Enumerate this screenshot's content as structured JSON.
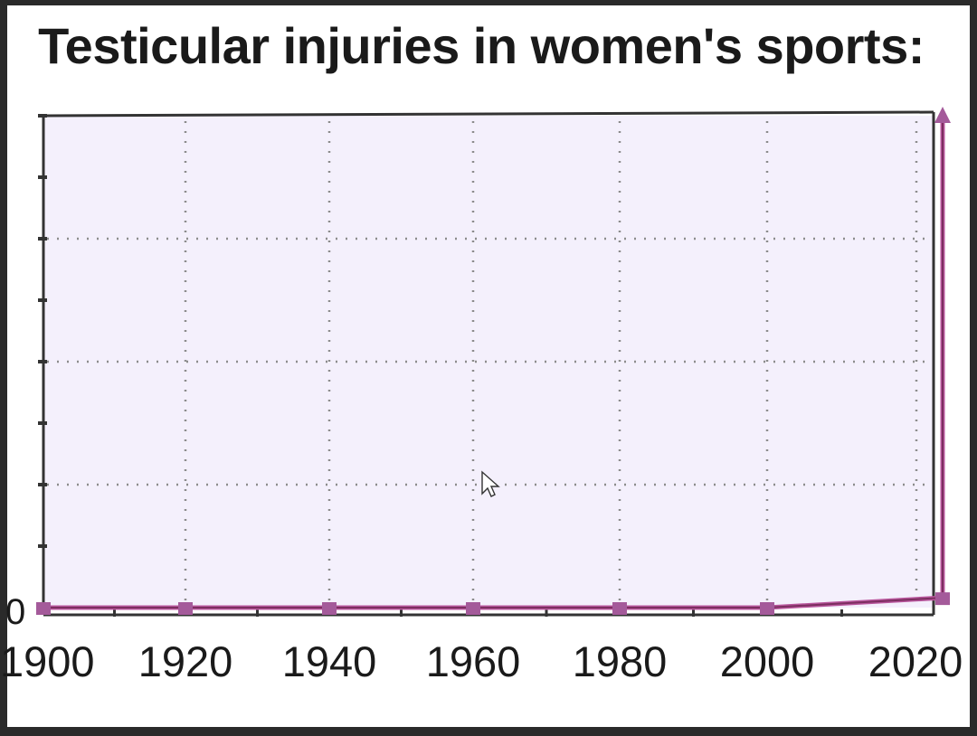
{
  "chart_data": {
    "type": "line",
    "title": "Testicular injuries in women's sports:",
    "xlabel": "",
    "ylabel": "",
    "x_ticks": [
      "1900",
      "1920",
      "1940",
      "1960",
      "1980",
      "2000",
      "2020"
    ],
    "y_tick_zero": "0",
    "xlim": [
      1900,
      2023
    ],
    "ylim": [
      0,
      100
    ],
    "grid": true,
    "legend": "none",
    "series": [
      {
        "color": "#b8569c",
        "x": [
          1900,
          1920,
          1940,
          1960,
          1980,
          2000,
          2022,
          2023
        ],
        "y": [
          0,
          0,
          0,
          0,
          0,
          0,
          2,
          100
        ]
      }
    ]
  },
  "colors": {
    "line": "#b8569c",
    "marker": "#a45a9a",
    "plot_bg": "#f4f0fc",
    "axis": "#333333",
    "grid": "#8c8c8c"
  }
}
